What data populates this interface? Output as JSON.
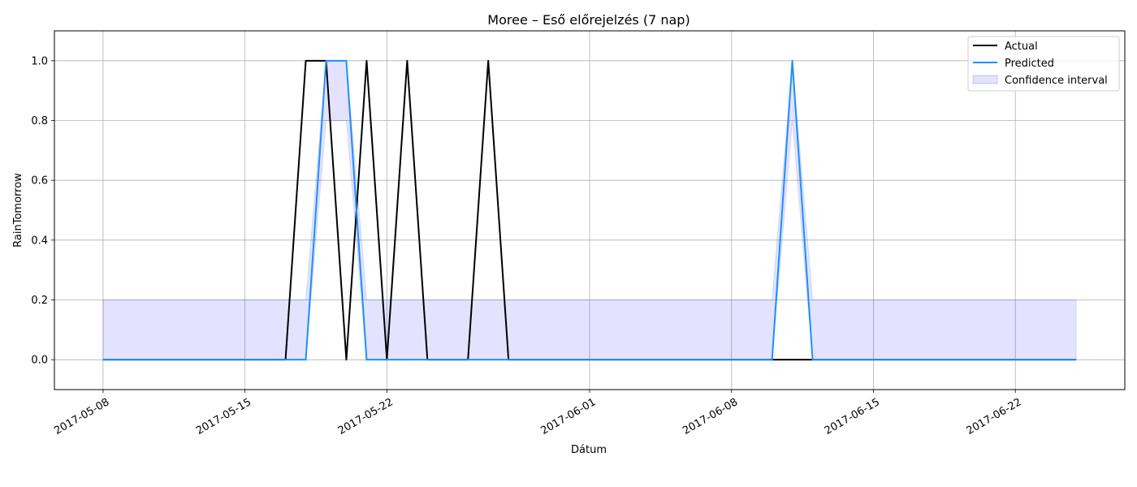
{
  "chart_data": {
    "type": "line",
    "title": "Moree – Eső előrejelzés (7 nap)",
    "xlabel": "Dátum",
    "ylabel": "RainTomorrow",
    "x_start": "2017-05-08",
    "x_end": "2017-06-25",
    "xlim": [
      "2017-05-05T14:24:00",
      "2017-06-27T09:36:00"
    ],
    "ylim": [
      -0.1,
      1.1
    ],
    "x_ticks": [
      "2017-05-08",
      "2017-05-15",
      "2017-05-22",
      "2017-06-01",
      "2017-06-08",
      "2017-06-15",
      "2017-06-22"
    ],
    "y_ticks": [
      "0.0",
      "0.2",
      "0.4",
      "0.6",
      "0.8",
      "1.0"
    ],
    "grid": true,
    "legend_position": "top-right",
    "series": [
      {
        "name": "Actual",
        "color": "#000000",
        "values": [
          0,
          0,
          0,
          0,
          0,
          0,
          0,
          0,
          0,
          0,
          1,
          1,
          0,
          1,
          0,
          1,
          0,
          0,
          0,
          1,
          0,
          0,
          0,
          0,
          0,
          0,
          0,
          0,
          0,
          0,
          0,
          0,
          0,
          0,
          0,
          0,
          0,
          0,
          0,
          0,
          0,
          0,
          0,
          0,
          0,
          0,
          0,
          0,
          0
        ]
      },
      {
        "name": "Predicted",
        "color": "#1e90ff",
        "values": [
          0,
          0,
          0,
          0,
          0,
          0,
          0,
          0,
          0,
          0,
          0,
          1,
          1,
          0,
          0,
          0,
          0,
          0,
          0,
          0,
          0,
          0,
          0,
          0,
          0,
          0,
          0,
          0,
          0,
          0,
          0,
          0,
          0,
          0,
          1,
          0,
          0,
          0,
          0,
          0,
          0,
          0,
          0,
          0,
          0,
          0,
          0,
          0,
          0
        ]
      }
    ],
    "confidence_interval": {
      "name": "Confidence interval",
      "color": "#0000ff",
      "lower": [
        0,
        0,
        0,
        0,
        0,
        0,
        0,
        0,
        0,
        0,
        0,
        0.8,
        0.8,
        0,
        0,
        0,
        0,
        0,
        0,
        0,
        0,
        0,
        0,
        0,
        0,
        0,
        0,
        0,
        0,
        0,
        0,
        0,
        0,
        0,
        0.8,
        0,
        0,
        0,
        0,
        0,
        0,
        0,
        0,
        0,
        0,
        0,
        0,
        0,
        0
      ],
      "upper": [
        0.2,
        0.2,
        0.2,
        0.2,
        0.2,
        0.2,
        0.2,
        0.2,
        0.2,
        0.2,
        0.2,
        1,
        1,
        0.2,
        0.2,
        0.2,
        0.2,
        0.2,
        0.2,
        0.2,
        0.2,
        0.2,
        0.2,
        0.2,
        0.2,
        0.2,
        0.2,
        0.2,
        0.2,
        0.2,
        0.2,
        0.2,
        0.2,
        0.2,
        1,
        0.2,
        0.2,
        0.2,
        0.2,
        0.2,
        0.2,
        0.2,
        0.2,
        0.2,
        0.2,
        0.2,
        0.2,
        0.2,
        0.2
      ]
    }
  }
}
